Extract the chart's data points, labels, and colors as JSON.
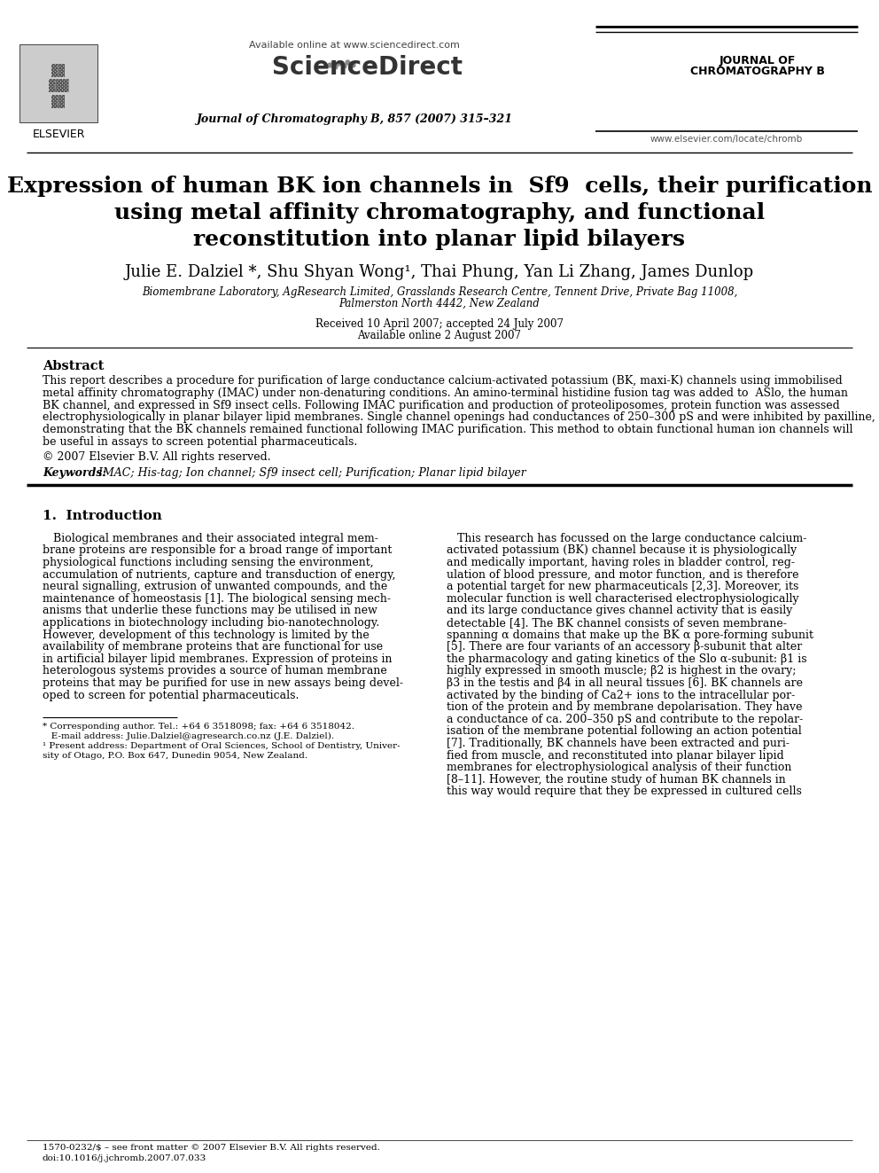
{
  "bg_color": "#ffffff",
  "title_line1": "Expression of human BK ion channels in  Sf9  cells, their purification",
  "title_line2": "using metal affinity chromatography, and functional",
  "title_line3": "reconstitution into planar lipid bilayers",
  "authors": "Julie E. Dalziel *, Shu Shyan Wong¹, Thai Phung, Yan Li Zhang, James Dunlop",
  "affiliation1": "Biomembrane Laboratory, AgResearch Limited, Grasslands Research Centre, Tennent Drive, Private Bag 11008,",
  "affiliation2": "Palmerston North 4442, New Zealand",
  "received": "Received 10 April 2007; accepted 24 July 2007",
  "available": "Available online 2 August 2007",
  "journal_header": "Journal of Chromatography B, 857 (2007) 315–321",
  "journal_name_right1": "JOURNAL OF",
  "journal_name_right2": "CHROMATOGRAPHY B",
  "available_online_text": "Available online at www.sciencedirect.com",
  "sciencedirect": "ScienceDirect",
  "elsevier_text": "ELSEVIER",
  "website": "www.elsevier.com/locate/chromb",
  "abstract_title": "Abstract",
  "abstract_body_lines": [
    "This report describes a procedure for purification of large conductance calcium-activated potassium (BK, maxi-K) channels using immobilised",
    "metal affinity chromatography (IMAC) under non-denaturing conditions. An amino-terminal histidine fusion tag was added to  ASlo, the human",
    "BK channel, and expressed in Sf9 insect cells. Following IMAC purification and production of proteoliposomes, protein function was assessed",
    "electrophysiologically in planar bilayer lipid membranes. Single channel openings had conductances of 250–300 pS and were inhibited by paxilline,",
    "demonstrating that the BK channels remained functional following IMAC purification. This method to obtain functional human ion channels will",
    "be useful in assays to screen potential pharmaceuticals."
  ],
  "copyright": "© 2007 Elsevier B.V. All rights reserved.",
  "keywords_label": "Keywords:",
  "keywords_text": "  IMAC; His-tag; Ion channel; Sf9 insect cell; Purification; Planar lipid bilayer",
  "section1_title": "1.  Introduction",
  "intro_col1_lines": [
    "   Biological membranes and their associated integral mem-",
    "brane proteins are responsible for a broad range of important",
    "physiological functions including sensing the environment,",
    "accumulation of nutrients, capture and transduction of energy,",
    "neural signalling, extrusion of unwanted compounds, and the",
    "maintenance of homeostasis [1]. The biological sensing mech-",
    "anisms that underlie these functions may be utilised in new",
    "applications in biotechnology including bio-nanotechnology.",
    "However, development of this technology is limited by the",
    "availability of membrane proteins that are functional for use",
    "in artificial bilayer lipid membranes. Expression of proteins in",
    "heterologous systems provides a source of human membrane",
    "proteins that may be purified for use in new assays being devel-",
    "oped to screen for potential pharmaceuticals."
  ],
  "intro_col2_lines": [
    "   This research has focussed on the large conductance calcium-",
    "activated potassium (BK) channel because it is physiologically",
    "and medically important, having roles in bladder control, reg-",
    "ulation of blood pressure, and motor function, and is therefore",
    "a potential target for new pharmaceuticals [2,3]. Moreover, its",
    "molecular function is well characterised electrophysiologically",
    "and its large conductance gives channel activity that is easily",
    "detectable [4]. The BK channel consists of seven membrane-",
    "spanning α domains that make up the BK α pore-forming subunit",
    "[5]. There are four variants of an accessory β-subunit that alter",
    "the pharmacology and gating kinetics of the Slo α-subunit: β1 is",
    "highly expressed in smooth muscle; β2 is highest in the ovary;",
    "β3 in the testis and β4 in all neural tissues [6]. BK channels are",
    "activated by the binding of Ca2+ ions to the intracellular por-",
    "tion of the protein and by membrane depolarisation. They have",
    "a conductance of ca. 200–350 pS and contribute to the repolar-",
    "isation of the membrane potential following an action potential",
    "[7]. Traditionally, BK channels have been extracted and puri-",
    "fied from muscle, and reconstituted into planar bilayer lipid",
    "membranes for electrophysiological analysis of their function",
    "[8–11]. However, the routine study of human BK channels in",
    "this way would require that they be expressed in cultured cells"
  ],
  "footnote_star": "* Corresponding author. Tel.: +64 6 3518098; fax: +64 6 3518042.",
  "footnote_email": "   E-mail address: Julie.Dalziel@agresearch.co.nz (J.E. Dalziel).",
  "footnote_1a": "¹ Present address: Department of Oral Sciences, School of Dentistry, Univer-",
  "footnote_1b": "sity of Otago, P.O. Box 647, Dunedin 9054, New Zealand.",
  "footer_issn": "1570-0232/$ – see front matter © 2007 Elsevier B.V. All rights reserved.",
  "footer_doi": "doi:10.1016/j.jchromb.2007.07.033"
}
